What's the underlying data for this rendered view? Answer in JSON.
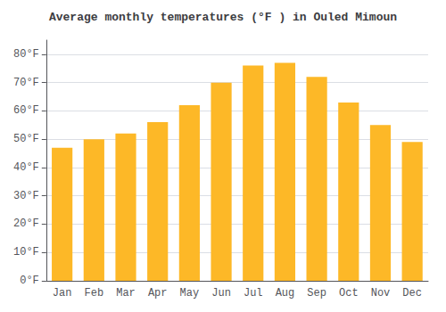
{
  "chart_data": {
    "type": "bar",
    "title": "Average monthly temperatures (°F ) in Ouled Mimoun",
    "categories": [
      "Jan",
      "Feb",
      "Mar",
      "Apr",
      "May",
      "Jun",
      "Jul",
      "Aug",
      "Sep",
      "Oct",
      "Nov",
      "Dec"
    ],
    "values": [
      47,
      50,
      52,
      56,
      62,
      70,
      76,
      77,
      72,
      63,
      55,
      49
    ],
    "color": "#FDB827",
    "ylim": [
      0,
      85
    ],
    "yticks": [
      {
        "value": 0,
        "label": "0°F"
      },
      {
        "value": 10,
        "label": "10°F"
      },
      {
        "value": 20,
        "label": "20°F"
      },
      {
        "value": 30,
        "label": "30°F"
      },
      {
        "value": 40,
        "label": "40°F"
      },
      {
        "value": 50,
        "label": "50°F"
      },
      {
        "value": 60,
        "label": "60°F"
      },
      {
        "value": 70,
        "label": "70°F"
      },
      {
        "value": 80,
        "label": "80°F"
      }
    ],
    "grid": true
  }
}
